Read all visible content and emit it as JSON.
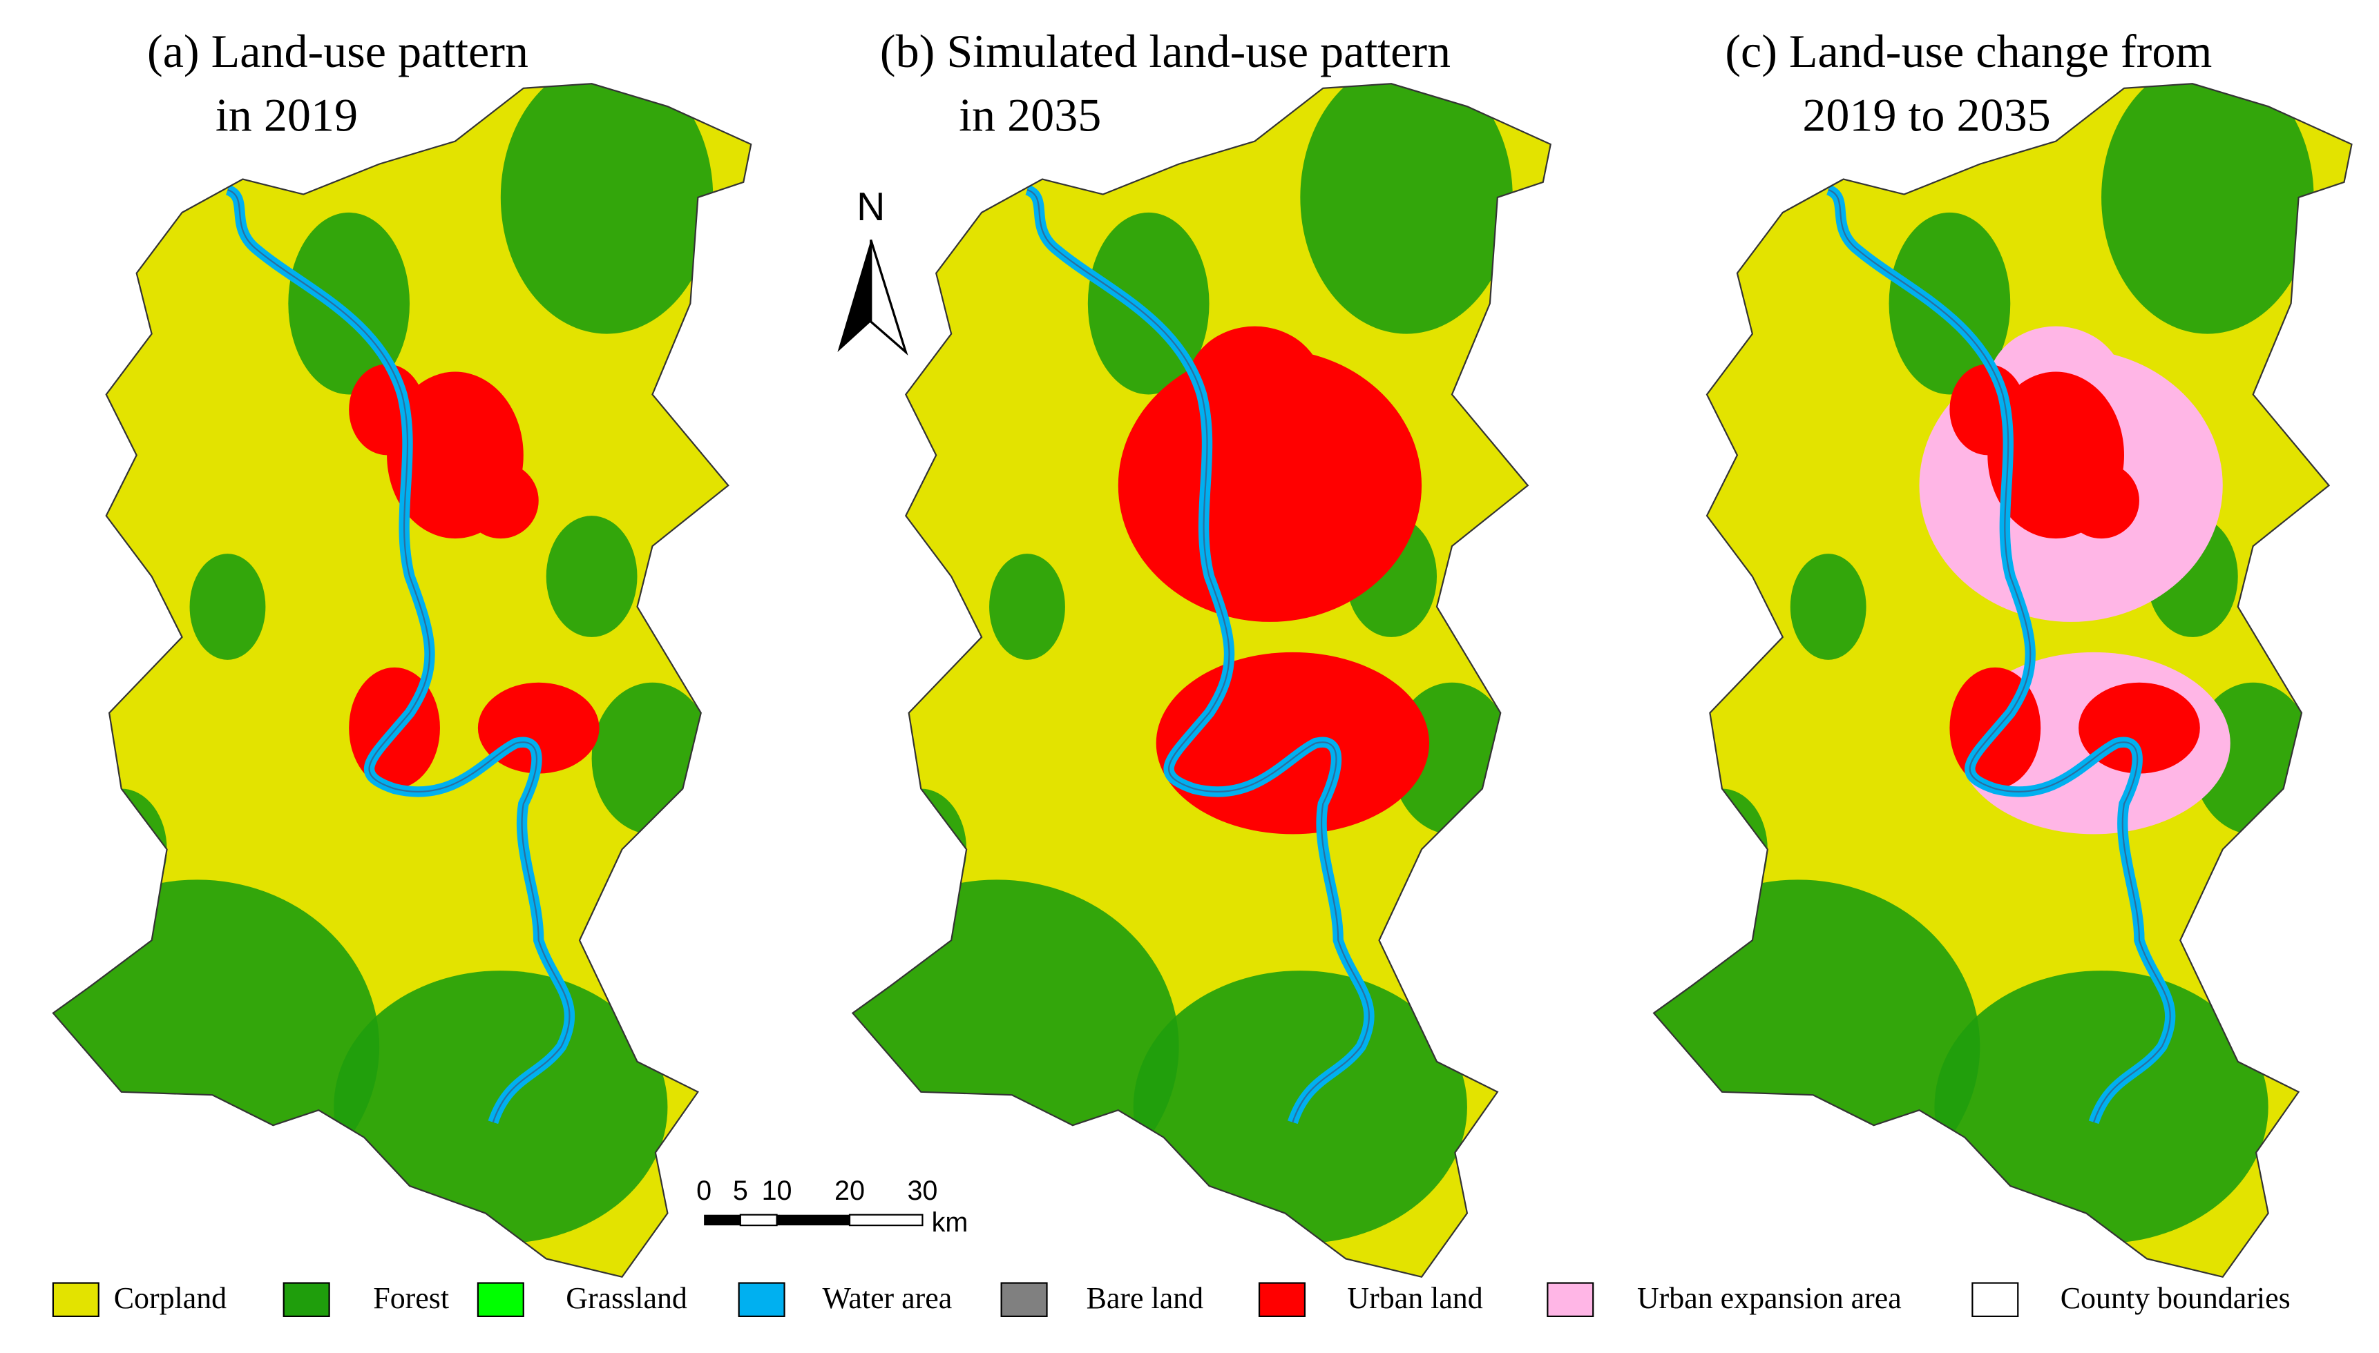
{
  "panels": [
    {
      "title_lines": [
        "(a) Land-use pattern",
        "in 2019"
      ]
    },
    {
      "title_lines": [
        "(b) Simulated land-use pattern",
        "in 2035"
      ]
    },
    {
      "title_lines": [
        "(c) Land-use change from",
        "2019 to 2035"
      ]
    }
  ],
  "north_arrow": {
    "label": "N"
  },
  "scale_bar": {
    "labels": [
      "0",
      "5",
      "10",
      "20",
      "30"
    ],
    "unit": "km"
  },
  "legend": {
    "items": [
      {
        "label": "Corpland",
        "color": "#e3e300"
      },
      {
        "label": "Forest",
        "color": "#1f9e0c"
      },
      {
        "label": "Grassland",
        "color": "#00ff00"
      },
      {
        "label": "Water area",
        "color": "#00b0f0"
      },
      {
        "label": "Bare land",
        "color": "#808080"
      },
      {
        "label": "Urban land",
        "color": "#ff0000"
      },
      {
        "label": "Urban expansion area",
        "color": "#ffb6e6"
      },
      {
        "label": "County boundaries",
        "color": "#ffffff"
      }
    ]
  }
}
